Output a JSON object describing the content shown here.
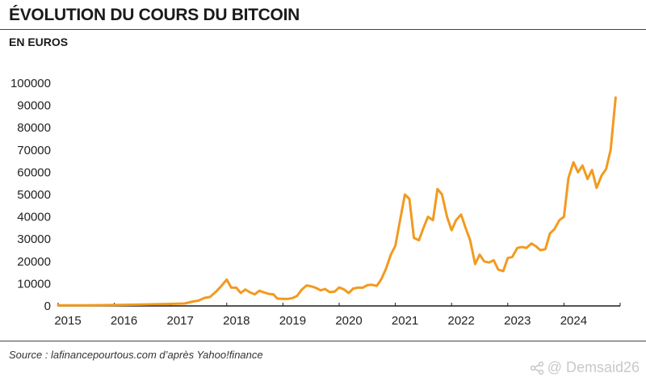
{
  "header": {
    "title": "ÉVOLUTION DU COURS DU BITCOIN",
    "subtitle": "EN EUROS"
  },
  "footer": {
    "source": "Source : lafinancepourtous.com d’après Yahoo!finance"
  },
  "watermark": {
    "text": "@ Demsaid26",
    "icon": "share-icon"
  },
  "colors": {
    "line": "#F29A1F",
    "axis": "#1a1a1a",
    "text": "#222222"
  },
  "chart_data": {
    "type": "line",
    "title": "ÉVOLUTION DU COURS DU BITCOIN",
    "subtitle": "EN EUROS",
    "xlabel": "",
    "ylabel": "",
    "ylim": [
      0,
      100000
    ],
    "xlim": [
      2015.0,
      2025.0
    ],
    "y_ticks": [
      0,
      10000,
      20000,
      30000,
      40000,
      50000,
      60000,
      70000,
      80000,
      90000,
      100000
    ],
    "y_tick_labels": [
      "0",
      "10000",
      "20000",
      "30000",
      "40000",
      "50000",
      "60000",
      "70000",
      "80000",
      "90000",
      "100000"
    ],
    "x_tick_labels": [
      "2015",
      "2016",
      "2017",
      "2018",
      "2019",
      "2020",
      "2021",
      "2022",
      "2023",
      "2024"
    ],
    "grid": false,
    "legend": "none",
    "series": [
      {
        "x": [
          2015.0,
          2015.5,
          2016.0,
          2016.5,
          2017.0,
          2017.25,
          2017.4,
          2017.5,
          2017.6,
          2017.7,
          2017.8,
          2017.9,
          2018.0,
          2018.08,
          2018.17,
          2018.25,
          2018.33,
          2018.42,
          2018.5,
          2018.58,
          2018.67,
          2018.75,
          2018.83,
          2018.9,
          2019.0,
          2019.08,
          2019.17,
          2019.25,
          2019.33,
          2019.42,
          2019.5,
          2019.58,
          2019.67,
          2019.75,
          2019.83,
          2019.92,
          2020.0,
          2020.08,
          2020.17,
          2020.25,
          2020.33,
          2020.42,
          2020.5,
          2020.58,
          2020.67,
          2020.75,
          2020.83,
          2020.92,
          2021.0,
          2021.08,
          2021.17,
          2021.25,
          2021.33,
          2021.42,
          2021.5,
          2021.58,
          2021.67,
          2021.75,
          2021.83,
          2021.92,
          2022.0,
          2022.08,
          2022.17,
          2022.25,
          2022.33,
          2022.42,
          2022.5,
          2022.58,
          2022.67,
          2022.75,
          2022.83,
          2022.92,
          2023.0,
          2023.08,
          2023.17,
          2023.25,
          2023.33,
          2023.42,
          2023.5,
          2023.58,
          2023.67,
          2023.75,
          2023.83,
          2023.92,
          2024.0,
          2024.08,
          2024.17,
          2024.25,
          2024.33,
          2024.42,
          2024.5,
          2024.58,
          2024.67,
          2024.75,
          2024.83,
          2024.92
        ],
        "y": [
          300,
          300,
          400,
          600,
          900,
          1100,
          2000,
          2400,
          3600,
          4000,
          6200,
          8800,
          11800,
          8200,
          8200,
          5800,
          7400,
          6000,
          5200,
          6800,
          6000,
          5400,
          5200,
          3300,
          3200,
          3100,
          3500,
          4500,
          7200,
          9200,
          8800,
          8200,
          7000,
          7600,
          6200,
          6400,
          8300,
          7500,
          5800,
          7800,
          8200,
          8200,
          9300,
          9500,
          9000,
          12000,
          16500,
          23000,
          27000,
          38000,
          50000,
          48000,
          30500,
          29500,
          35000,
          40000,
          38500,
          52500,
          50000,
          40000,
          34000,
          38500,
          41000,
          35000,
          29500,
          18800,
          23000,
          20000,
          19500,
          20500,
          16300,
          15600,
          21500,
          22000,
          26000,
          26500,
          26000,
          28000,
          26800,
          25000,
          25500,
          32500,
          34500,
          38500,
          40000,
          57500,
          64500,
          60000,
          63000,
          57000,
          61000,
          53000,
          58500,
          61500,
          70000,
          93500
        ]
      }
    ]
  }
}
